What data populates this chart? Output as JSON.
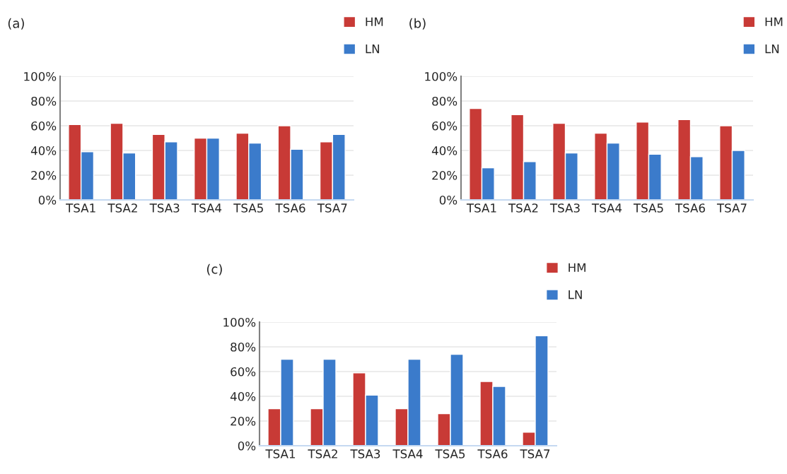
{
  "chart_data": [
    {
      "type": "bar",
      "title": "(a)",
      "categories": [
        "TSA1",
        "TSA2",
        "TSA3",
        "TSA4",
        "TSA5",
        "TSA6",
        "TSA7"
      ],
      "series": [
        {
          "name": "HM",
          "color": "#c83a36",
          "values": [
            61,
            62,
            53,
            50,
            54,
            60,
            47
          ]
        },
        {
          "name": "LN",
          "color": "#3b7bcb",
          "values": [
            39,
            38,
            47,
            50,
            46,
            41,
            53
          ]
        }
      ],
      "ylim": [
        0,
        100
      ],
      "yticks": [
        {
          "value": 0,
          "label": "0%"
        },
        {
          "value": 20,
          "label": "20%"
        },
        {
          "value": 40,
          "label": "40%"
        },
        {
          "value": 60,
          "label": "60%"
        },
        {
          "value": 80,
          "label": "80%"
        },
        {
          "value": 100,
          "label": "100%"
        }
      ],
      "grid": "y",
      "legend": "top right"
    },
    {
      "type": "bar",
      "title": "(b)",
      "categories": [
        "TSA1",
        "TSA2",
        "TSA3",
        "TSA4",
        "TSA5",
        "TSA6",
        "TSA7"
      ],
      "series": [
        {
          "name": "HM",
          "color": "#c83a36",
          "values": [
            74,
            69,
            62,
            54,
            63,
            65,
            60
          ]
        },
        {
          "name": "LN",
          "color": "#3b7bcb",
          "values": [
            26,
            31,
            38,
            46,
            37,
            35,
            40
          ]
        }
      ],
      "ylim": [
        0,
        100
      ],
      "yticks": [
        {
          "value": 0,
          "label": "0%"
        },
        {
          "value": 20,
          "label": "20%"
        },
        {
          "value": 40,
          "label": "40%"
        },
        {
          "value": 60,
          "label": "60%"
        },
        {
          "value": 80,
          "label": "80%"
        },
        {
          "value": 100,
          "label": "100%"
        }
      ],
      "grid": "y",
      "legend": "top right"
    },
    {
      "type": "bar",
      "title": "(c)",
      "categories": [
        "TSA1",
        "TSA2",
        "TSA3",
        "TSA4",
        "TSA5",
        "TSA6",
        "TSA7"
      ],
      "series": [
        {
          "name": "HM",
          "color": "#c83a36",
          "values": [
            30,
            30,
            59,
            30,
            26,
            52,
            11
          ]
        },
        {
          "name": "LN",
          "color": "#3b7bcb",
          "values": [
            70,
            70,
            41,
            70,
            74,
            48,
            89
          ]
        }
      ],
      "ylim": [
        0,
        100
      ],
      "yticks": [
        {
          "value": 0,
          "label": "0%"
        },
        {
          "value": 20,
          "label": "20%"
        },
        {
          "value": 40,
          "label": "40%"
        },
        {
          "value": 60,
          "label": "60%"
        },
        {
          "value": 80,
          "label": "80%"
        },
        {
          "value": 100,
          "label": "100%"
        }
      ],
      "grid": "y",
      "legend": "top right"
    }
  ]
}
